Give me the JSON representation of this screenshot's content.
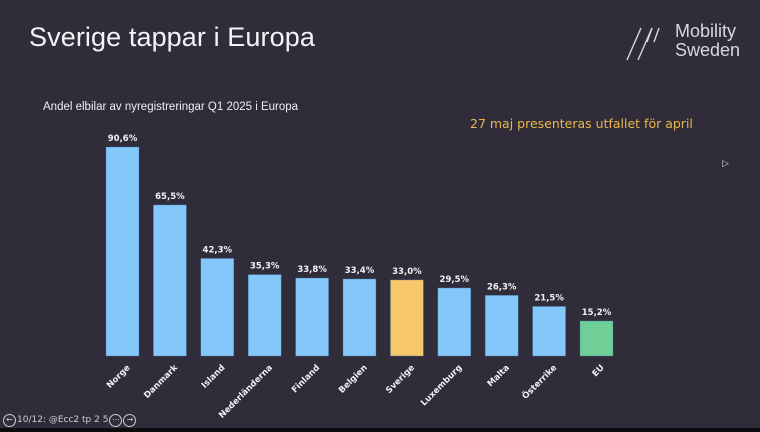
{
  "slide": {
    "title": "Sverige tappar i Europa",
    "logo": {
      "line1": "Mobility",
      "line2": "Sweden"
    },
    "note": "27 maj presenteras utfallet för april",
    "nav_text": "10/12: @Ecc2 tp 2 5"
  },
  "chart_data": {
    "type": "bar",
    "title": "Andel elbilar av nyregistreringar Q1 2025 i Europa",
    "xlabel": "",
    "ylabel": "",
    "ylim": [
      0,
      100
    ],
    "grid": false,
    "categories": [
      "Norge",
      "Danmark",
      "Island",
      "Nederländerna",
      "Finland",
      "Belgien",
      "Sverige",
      "Luxemburg",
      "Malta",
      "Österrike",
      "EU"
    ],
    "values": [
      90.6,
      65.5,
      42.3,
      35.3,
      33.8,
      33.4,
      33.0,
      29.5,
      26.3,
      21.5,
      15.2
    ],
    "labels": [
      "90,6%",
      "65,5%",
      "42,3%",
      "35,3%",
      "33,8%",
      "33,4%",
      "33,0%",
      "29,5%",
      "26,3%",
      "21,5%",
      "15,2%"
    ],
    "colors": [
      "#84c8fa",
      "#84c8fa",
      "#84c8fa",
      "#84c8fa",
      "#84c8fa",
      "#84c8fa",
      "#f7c86a",
      "#84c8fa",
      "#84c8fa",
      "#84c8fa",
      "#6fcf97"
    ]
  }
}
